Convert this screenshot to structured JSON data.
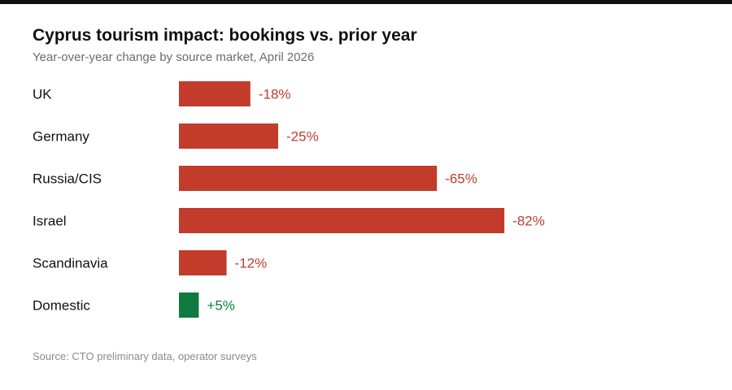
{
  "chart_data": {
    "type": "bar",
    "orientation": "horizontal",
    "title": "Cyprus tourism impact: bookings vs. prior year",
    "subtitle": "Year-over-year change by source market, April 2026",
    "source": "Source: CTO preliminary data, operator surveys",
    "categories": [
      "UK",
      "Germany",
      "Russia/CIS",
      "Israel",
      "Scandinavia",
      "Domestic"
    ],
    "values": [
      -18,
      -25,
      -65,
      -82,
      -12,
      5
    ],
    "labels": [
      "-18%",
      "-25%",
      "-65%",
      "-82%",
      "-12%",
      "+5%"
    ],
    "colors": {
      "negative": "#c23b2b",
      "positive": "#0f7b3e"
    },
    "grid": false,
    "axes_visible": false
  }
}
